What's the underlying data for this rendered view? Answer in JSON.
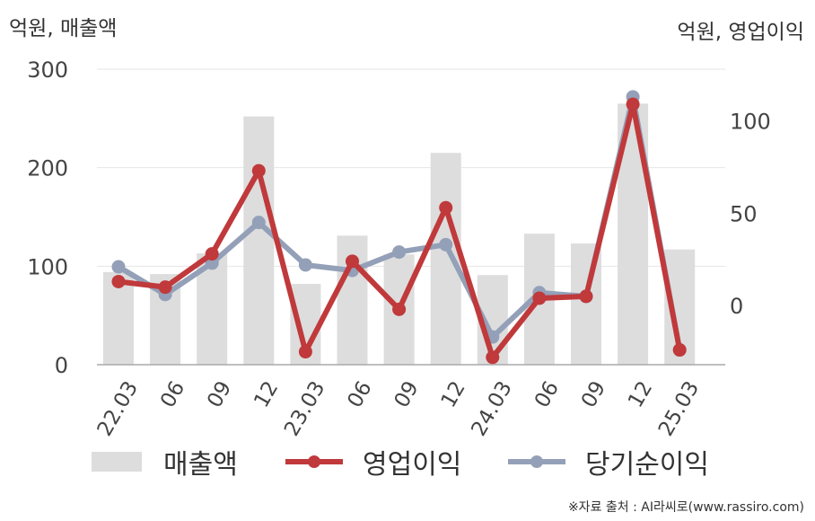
{
  "units": {
    "left": "억원, 매출액",
    "right": "억원, 영업이익"
  },
  "legend": {
    "revenue": "매출액",
    "operating_profit": "영업이익",
    "net_profit": "당기순이익"
  },
  "source": "※자료 출처 : AI라씨로(www.rassiro.com)",
  "colors": {
    "revenue": "#dddddd",
    "operating_profit": "#c0393b",
    "net_profit": "#93a0b8",
    "grid": "#e6e6e6",
    "axis": "#aaaaaa"
  },
  "chart_data": {
    "type": "bar+line",
    "categories": [
      "22.03",
      "06",
      "09",
      "12",
      "23.03",
      "06",
      "09",
      "12",
      "24.03",
      "06",
      "09",
      "12",
      "25.03"
    ],
    "left_axis": {
      "ticks": [
        "0",
        "100",
        "200",
        "300"
      ],
      "ylim": [
        0,
        300
      ]
    },
    "right_axis": {
      "ticks": [
        "0",
        "50",
        "100"
      ],
      "ylim": [
        -32,
        128
      ]
    },
    "grid": true,
    "legend_position": "bottom",
    "series": [
      {
        "name": "매출액",
        "type": "bar",
        "axis": "left",
        "values": [
          94,
          92,
          113,
          252,
          82,
          131,
          112,
          215,
          91,
          133,
          123,
          265,
          117
        ]
      },
      {
        "name": "영업이익",
        "type": "line",
        "axis": "right",
        "values": [
          13,
          10,
          28,
          73,
          -25,
          24,
          -2,
          53,
          -28,
          4,
          5,
          109,
          -24
        ]
      },
      {
        "name": "당기순이익",
        "type": "line",
        "axis": "right",
        "values": [
          21,
          6,
          23,
          45,
          22,
          19,
          29,
          33,
          -17,
          7,
          5,
          113,
          -24
        ]
      }
    ]
  }
}
